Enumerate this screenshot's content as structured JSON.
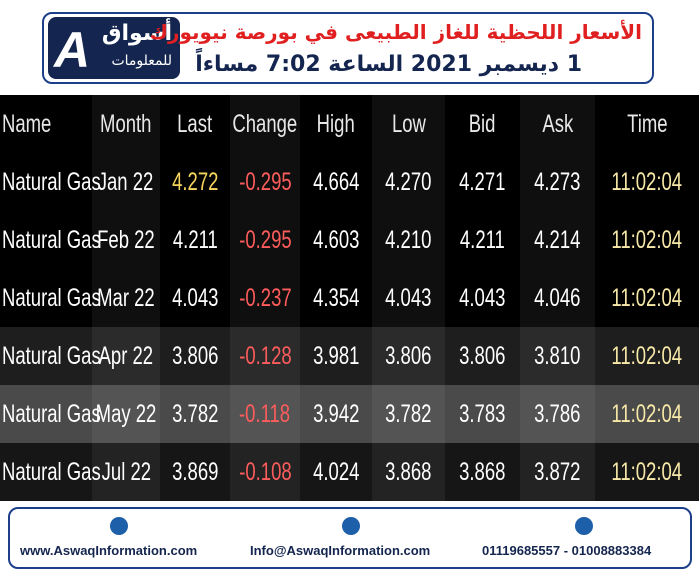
{
  "header": {
    "logo": {
      "arabic_name": "أسواق",
      "arabic_subtitle": "للمعلومات"
    },
    "title": "الأسعار اللحظية للغاز الطبيعى في بورصة نيويورك",
    "subtitle": "1 ديسمبر 2021 الساعة 7:02 مساءاً"
  },
  "table": {
    "columns": [
      "Name",
      "Month",
      "Last",
      "Change",
      "High",
      "Low",
      "Bid",
      "Ask",
      "Time"
    ],
    "rows": [
      [
        "Natural Gas",
        "Jan 22",
        "4.272",
        "-0.295",
        "4.664",
        "4.270",
        "4.271",
        "4.273",
        "11:02:04"
      ],
      [
        "Natural Gas",
        "Feb 22",
        "4.211",
        "-0.295",
        "4.603",
        "4.210",
        "4.211",
        "4.214",
        "11:02:04"
      ],
      [
        "Natural Gas",
        "Mar 22",
        "4.043",
        "-0.237",
        "4.354",
        "4.043",
        "4.043",
        "4.046",
        "11:02:04"
      ],
      [
        "Natural Gas",
        "Apr 22",
        "3.806",
        "-0.128",
        "3.981",
        "3.806",
        "3.806",
        "3.810",
        "11:02:04"
      ],
      [
        "Natural Gas",
        "May 22",
        "3.782",
        "-0.118",
        "3.942",
        "3.782",
        "3.783",
        "3.786",
        "11:02:04"
      ],
      [
        "Natural Gas",
        "Jul 22",
        "3.869",
        "-0.108",
        "4.024",
        "3.868",
        "3.868",
        "3.872",
        "11:02:04"
      ]
    ]
  },
  "footer": {
    "website": "www.AswaqInformation.com",
    "email": "Info@AswaqInformation.com",
    "phones": "01119685557 - 01008883384"
  }
}
